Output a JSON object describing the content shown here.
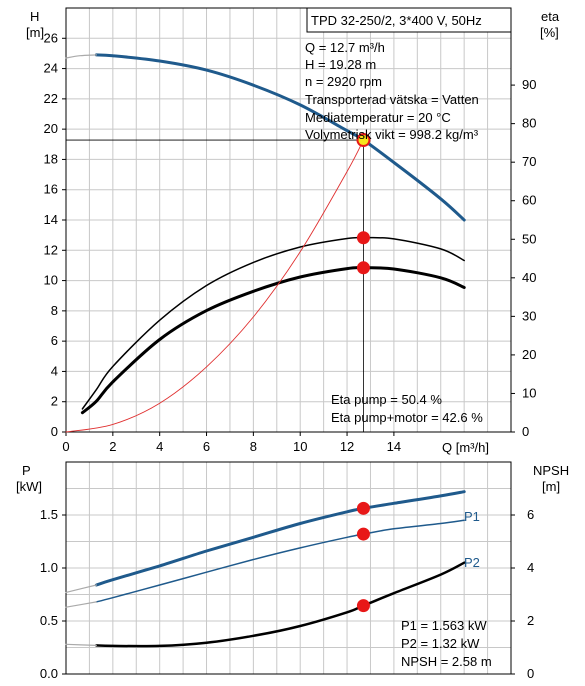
{
  "colors": {
    "blue": "#1f5a8c",
    "black": "#000000",
    "red_curve": "#e03030",
    "marker": "#e81818",
    "marker_yellow": "#f6e61c",
    "grid": "#c8c8c8",
    "curve_grey": "#aaaaaa"
  },
  "top": {
    "title": "TPD 32-250/2, 3*400 V, 50Hz",
    "ylabel_left": "H",
    "yunit_left": "[m]",
    "ylabel_right": "eta",
    "yunit_right": "[%]",
    "xlabel": "Q [m³/h]",
    "info": [
      "Q = 12.7 m³/h",
      "H = 19.28 m",
      "n = 2920 rpm",
      "Transporterad vätska = Vatten",
      "Mediatemperatur = 20 °C",
      "Volymetrisk vikt = 998.2 kg/m³"
    ],
    "eta_info": [
      "Eta pump = 50.4 %",
      "Eta pump+motor = 42.6 %"
    ]
  },
  "bottom": {
    "ylabel_left": "P",
    "yunit_left": "[kW]",
    "ylabel_right": "NPSH",
    "yunit_right": "[m]",
    "series_labels": {
      "p1": "P1",
      "p2": "P2"
    },
    "info": [
      "P1 = 1.563 kW",
      "P2 = 1.32 kW",
      "NPSH = 2.58 m"
    ]
  },
  "chart_data": [
    {
      "type": "line",
      "title": "TPD 32-250/2, 3*400 V, 50Hz",
      "xlabel": "Q [m³/h]",
      "ylabel": "H [m]",
      "y2label": "eta [%]",
      "xlim": [
        0,
        19
      ],
      "ylim": [
        0,
        28
      ],
      "y2lim": [
        0,
        110
      ],
      "xticks": [
        0,
        2,
        4,
        6,
        8,
        10,
        12,
        14
      ],
      "yticks": [
        0,
        2,
        4,
        6,
        8,
        10,
        12,
        14,
        16,
        18,
        20,
        22,
        24,
        26
      ],
      "y2ticks": [
        0,
        10,
        20,
        30,
        40,
        50,
        60,
        70,
        80,
        90
      ],
      "grid": true,
      "operating_point": {
        "x": 12.7,
        "y": 19.28
      },
      "series": [
        {
          "id": "head",
          "axis": "left",
          "x": [
            1.3,
            2,
            4,
            6,
            8,
            10,
            12,
            12.7,
            14,
            16,
            17
          ],
          "values": [
            24.9,
            24.85,
            24.5,
            23.9,
            22.9,
            21.6,
            19.9,
            19.28,
            17.8,
            15.4,
            14.0
          ]
        },
        {
          "id": "head_ext",
          "axis": "left",
          "x": [
            0,
            0.6,
            1.3
          ],
          "values": [
            24.7,
            24.85,
            24.9
          ]
        },
        {
          "id": "eta_pump",
          "axis": "right",
          "x": [
            0.7,
            1.3,
            2,
            4,
            6,
            8,
            10,
            12,
            12.7,
            14,
            16,
            17
          ],
          "values": [
            6,
            11,
            17,
            29,
            38,
            44,
            48,
            50.2,
            50.4,
            50.1,
            47.5,
            44.5
          ]
        },
        {
          "id": "eta_pump_motor",
          "axis": "right",
          "x": [
            0.7,
            1.3,
            2,
            4,
            6,
            8,
            10,
            12,
            12.7,
            14,
            16,
            17
          ],
          "values": [
            5,
            8,
            13,
            24,
            31.5,
            36.5,
            40.2,
            42.4,
            42.6,
            42.3,
            40,
            37.5
          ]
        },
        {
          "id": "system_curve",
          "axis": "left",
          "x": [
            0,
            2,
            4,
            6,
            8,
            10,
            12,
            12.7
          ],
          "values": [
            0,
            0.5,
            1.9,
            4.3,
            7.6,
            11.9,
            17.2,
            19.28
          ]
        }
      ],
      "markers": [
        {
          "series": "head",
          "x": 12.7,
          "y": 19.28
        },
        {
          "series": "eta_pump",
          "x": 12.7,
          "y": 50.4
        },
        {
          "series": "eta_pump_motor",
          "x": 12.7,
          "y": 42.6
        }
      ]
    },
    {
      "type": "line",
      "xlabel": "",
      "ylabel": "P [kW]",
      "y2label": "NPSH [m]",
      "xlim": [
        0,
        19
      ],
      "ylim": [
        0,
        2.0
      ],
      "y2lim": [
        0,
        8
      ],
      "yticks": [
        0.0,
        0.5,
        1.0,
        1.5
      ],
      "y2ticks": [
        0,
        2,
        4,
        6
      ],
      "grid": true,
      "series": [
        {
          "id": "p1",
          "name": "P1",
          "axis": "left",
          "x": [
            1.3,
            2,
            4,
            6,
            8,
            10,
            12,
            12.7,
            14,
            16,
            17
          ],
          "values": [
            0.84,
            0.89,
            1.02,
            1.16,
            1.29,
            1.42,
            1.53,
            1.563,
            1.61,
            1.68,
            1.72
          ]
        },
        {
          "id": "p1_ext",
          "axis": "left",
          "x": [
            0,
            1.3
          ],
          "values": [
            0.77,
            0.84
          ]
        },
        {
          "id": "p2",
          "name": "P2",
          "axis": "left",
          "x": [
            1.3,
            2,
            4,
            6,
            8,
            10,
            12,
            12.7,
            14,
            16,
            17
          ],
          "values": [
            0.68,
            0.72,
            0.84,
            0.96,
            1.08,
            1.19,
            1.29,
            1.32,
            1.37,
            1.42,
            1.45
          ]
        },
        {
          "id": "p2_ext",
          "axis": "left",
          "x": [
            0,
            1.3
          ],
          "values": [
            0.63,
            0.68
          ]
        },
        {
          "id": "npsh",
          "axis": "right",
          "x": [
            1.3,
            2,
            4,
            6,
            8,
            10,
            12,
            12.7,
            14,
            16,
            17
          ],
          "values": [
            1.08,
            1.06,
            1.06,
            1.18,
            1.44,
            1.81,
            2.33,
            2.58,
            3.05,
            3.75,
            4.2
          ]
        },
        {
          "id": "npsh_ext",
          "axis": "right",
          "x": [
            0,
            1.3
          ],
          "values": [
            1.12,
            1.08
          ]
        }
      ],
      "markers": [
        {
          "series": "p1",
          "x": 12.7,
          "y": 1.563
        },
        {
          "series": "p2",
          "x": 12.7,
          "y": 1.32
        },
        {
          "series": "npsh",
          "x": 12.7,
          "y": 2.58
        }
      ]
    }
  ]
}
